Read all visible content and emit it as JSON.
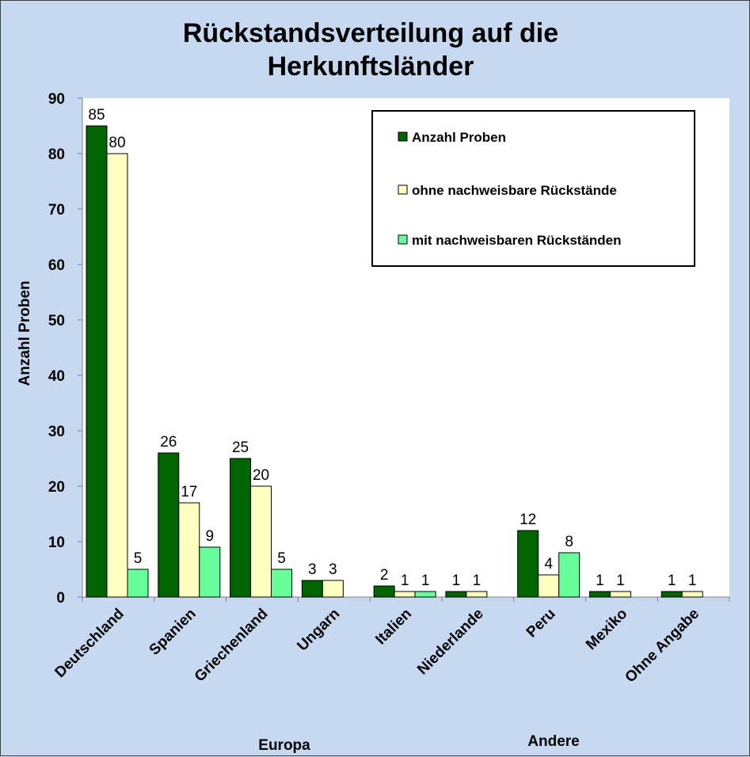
{
  "chart_data": {
    "type": "bar",
    "title_line1": "Rückstandsverteilung auf die",
    "title_line2": "Herkunftsländer",
    "ylabel": "Anzahl Proben",
    "ylim": [
      0,
      90
    ],
    "yticks": [
      0,
      10,
      20,
      30,
      40,
      50,
      60,
      70,
      80,
      90
    ],
    "categories": [
      "Deutschland",
      "Spanien",
      "Griechenland",
      "Ungarn",
      "Italien",
      "Niederlande",
      "Peru",
      "Mexiko",
      "Ohne Angabe"
    ],
    "groups": [
      {
        "label": "Europa"
      },
      {
        "label": "Andere"
      }
    ],
    "series": [
      {
        "name": "Anzahl Proben",
        "color": "#006400",
        "values": [
          85,
          26,
          25,
          3,
          2,
          1,
          12,
          1,
          1
        ]
      },
      {
        "name": "ohne nachweisbare Rückstände",
        "color": "#ffffc0",
        "values": [
          80,
          17,
          20,
          3,
          1,
          1,
          4,
          1,
          1
        ]
      },
      {
        "name": "mit nachweisbaren Rückständen",
        "color": "#66ff99",
        "values": [
          5,
          9,
          5,
          null,
          1,
          null,
          8,
          null,
          null
        ]
      }
    ],
    "legend_position": "top-right",
    "grid": false
  }
}
